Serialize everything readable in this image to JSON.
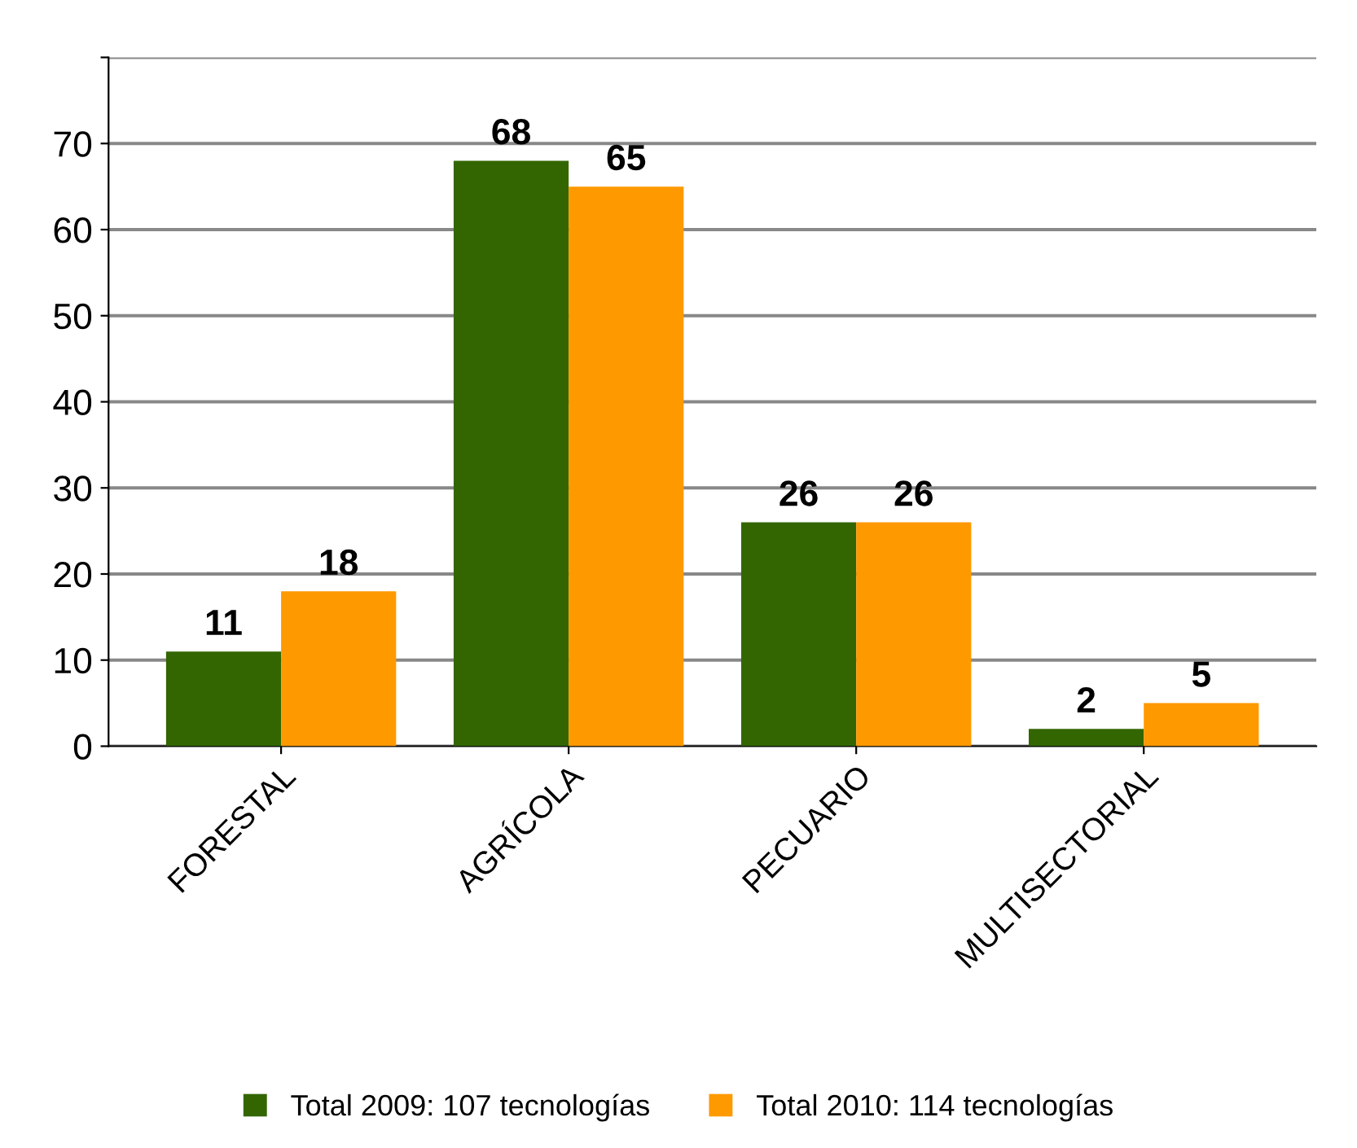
{
  "chart_data": {
    "type": "bar",
    "categories": [
      "FORESTAL",
      "AGRÍCOLA",
      "PECUARIO",
      "MULTISECTORIAL"
    ],
    "series": [
      {
        "name": "Total 2009: 107 tecnologías",
        "color": "#336600",
        "values": [
          11,
          68,
          26,
          2
        ]
      },
      {
        "name": "Total 2010: 114 tecnologías",
        "color": "#ff9900",
        "values": [
          18,
          65,
          26,
          5
        ]
      }
    ],
    "ylim": [
      0,
      80
    ],
    "yticks": [
      0,
      10,
      20,
      30,
      40,
      50,
      60,
      70,
      {
        "value": 80,
        "label": null
      }
    ],
    "grid": "y",
    "legend": "bottom",
    "data_labels": true
  }
}
